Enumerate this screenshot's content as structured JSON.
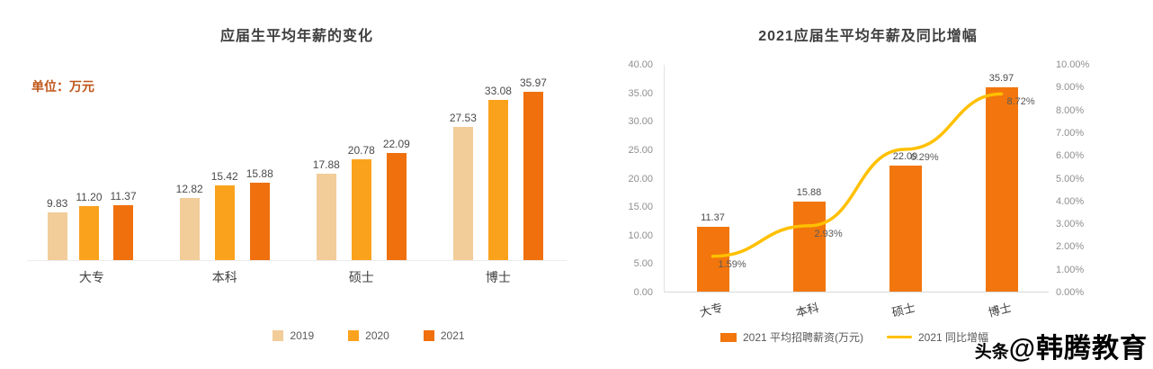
{
  "chart_data": [
    {
      "id": "salary-change",
      "type": "bar",
      "title": "应届生平均年薪的变化",
      "unit_label": "单位：万元",
      "categories": [
        "大专",
        "本科",
        "硕士",
        "博士"
      ],
      "series": [
        {
          "name": "2019",
          "color": "#F2CC99",
          "values": [
            9.83,
            12.82,
            17.88,
            27.53
          ]
        },
        {
          "name": "2020",
          "color": "#FBA21D",
          "values": [
            11.2,
            15.42,
            20.78,
            33.08
          ]
        },
        {
          "name": "2021",
          "color": "#F0700E",
          "values": [
            11.37,
            15.88,
            22.09,
            35.97
          ]
        }
      ],
      "ylim": [
        0,
        38
      ],
      "grid": false,
      "legend_position": "bottom"
    },
    {
      "id": "salary-and-growth-2021",
      "type": "bar+line",
      "title": "2021应届生平均年薪及同比增幅",
      "categories": [
        "大专",
        "本科",
        "硕士",
        "博士"
      ],
      "bar_series": {
        "name": "2021 平均招聘薪资(万元)",
        "color": "#F2760D",
        "values": [
          11.37,
          15.88,
          22.09,
          35.97
        ]
      },
      "line_series": {
        "name": "2021 同比增幅",
        "color": "#FFC000",
        "unit": "%",
        "values": [
          1.59,
          2.93,
          6.29,
          8.72
        ]
      },
      "left_axis": {
        "min": 0,
        "max": 40,
        "step": 5,
        "ticks": [
          "40.00",
          "35.00",
          "30.00",
          "25.00",
          "20.00",
          "15.00",
          "10.00",
          "5.00",
          "0.00"
        ]
      },
      "right_axis": {
        "min": 0,
        "max": 10,
        "step": 1,
        "ticks": [
          "10.00%",
          "9.00%",
          "8.00%",
          "7.00%",
          "6.00%",
          "5.00%",
          "4.00%",
          "3.00%",
          "2.00%",
          "1.00%",
          "0.00%"
        ]
      },
      "grid": false,
      "legend_position": "bottom"
    }
  ],
  "watermark": {
    "prefix": "头条",
    "at": "@",
    "name": "韩腾教育"
  }
}
